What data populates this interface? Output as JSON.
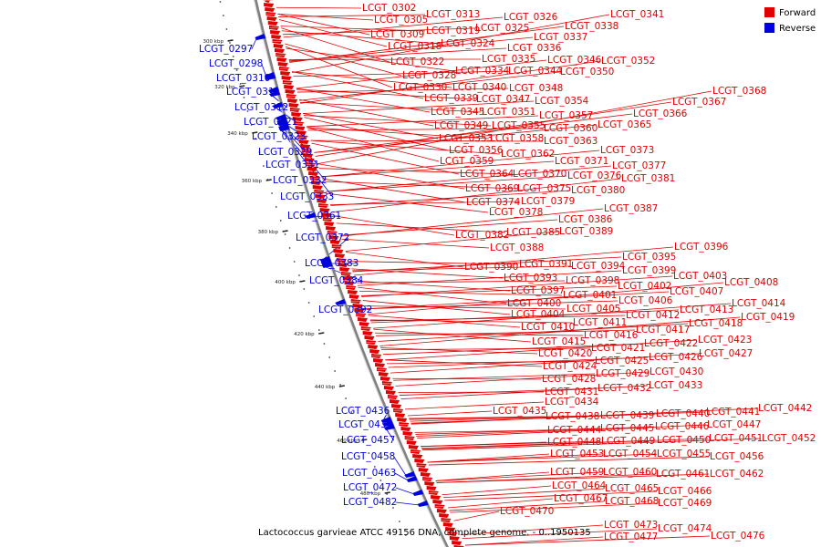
{
  "legend": {
    "forward_label": "Forward",
    "reverse_label": "Reverse",
    "forward_color": "#e00000",
    "reverse_color": "#0000dd"
  },
  "caption": "Lactococcus garvieae ATCC 49156 DNA, complete genome. - 0..1950135",
  "scale_ticks": [
    "300 kbp",
    "320 kbp",
    "340 kbp",
    "360 kbp",
    "380 kbp",
    "400 kbp",
    "420 kbp",
    "440 kbp",
    "460 kbp",
    "480 kbp"
  ],
  "forward_genes": [
    "LCGT_0302",
    "LCGT_0305",
    "LCGT_0309",
    "LCGT_0313",
    "LCGT_0318",
    "LCGT_0319",
    "LCGT_0322",
    "LCGT_0324",
    "LCGT_0325",
    "LCGT_0326",
    "LCGT_0328",
    "LCGT_0330",
    "LCGT_0334",
    "LCGT_0335",
    "LCGT_0336",
    "LCGT_0337",
    "LCGT_0338",
    "LCGT_0339",
    "LCGT_0340",
    "LCGT_0341",
    "LCGT_0344",
    "LCGT_0345",
    "LCGT_0346",
    "LCGT_0347",
    "LCGT_0348",
    "LCGT_0349",
    "LCGT_0350",
    "LCGT_0351",
    "LCGT_0352",
    "LCGT_0353",
    "LCGT_0354",
    "LCGT_0355",
    "LCGT_0356",
    "LCGT_0357",
    "LCGT_0358",
    "LCGT_0359",
    "LCGT_0360",
    "LCGT_0362",
    "LCGT_0363",
    "LCGT_0364",
    "LCGT_0365",
    "LCGT_0366",
    "LCGT_0367",
    "LCGT_0368",
    "LCGT_0369",
    "LCGT_0370",
    "LCGT_0371",
    "LCGT_0373",
    "LCGT_0374",
    "LCGT_0375",
    "LCGT_0376",
    "LCGT_0377",
    "LCGT_0378",
    "LCGT_0379",
    "LCGT_0380",
    "LCGT_0381",
    "LCGT_0382",
    "LCGT_0385",
    "LCGT_0386",
    "LCGT_0387",
    "LCGT_0388",
    "LCGT_0389",
    "LCGT_0390",
    "LCGT_0391",
    "LCGT_0393",
    "LCGT_0394",
    "LCGT_0395",
    "LCGT_0396",
    "LCGT_0397",
    "LCGT_0398",
    "LCGT_0399",
    "LCGT_0400",
    "LCGT_0401",
    "LCGT_0402",
    "LCGT_0403",
    "LCGT_0404",
    "LCGT_0405",
    "LCGT_0406",
    "LCGT_0407",
    "LCGT_0408",
    "LCGT_0410",
    "LCGT_0411",
    "LCGT_0412",
    "LCGT_0413",
    "LCGT_0414",
    "LCGT_0415",
    "LCGT_0416",
    "LCGT_0417",
    "LCGT_0418",
    "LCGT_0419",
    "LCGT_0420",
    "LCGT_0421",
    "LCGT_0422",
    "LCGT_0423",
    "LCGT_0424",
    "LCGT_0425",
    "LCGT_0426",
    "LCGT_0427",
    "LCGT_0428",
    "LCGT_0429",
    "LCGT_0430",
    "LCGT_0431",
    "LCGT_0432",
    "LCGT_0433",
    "LCGT_0434",
    "LCGT_0435",
    "LCGT_0438",
    "LCGT_0439",
    "LCGT_0440",
    "LCGT_0441",
    "LCGT_0442",
    "LCGT_0444",
    "LCGT_0445",
    "LCGT_0446",
    "LCGT_0447",
    "LCGT_0448",
    "LCGT_0449",
    "LCGT_0450",
    "LCGT_0451",
    "LCGT_0452",
    "LCGT_0453",
    "LCGT_0454",
    "LCGT_0455",
    "LCGT_0456",
    "LCGT_0459",
    "LCGT_0460",
    "LCGT_0461",
    "LCGT_0462",
    "LCGT_0464",
    "LCGT_0465",
    "LCGT_0466",
    "LCGT_0467",
    "LCGT_0468",
    "LCGT_0469",
    "LCGT_0470",
    "LCGT_0473",
    "LCGT_0474",
    "LCGT_0476",
    "LCGT_0477"
  ],
  "reverse_genes": [
    "LCGT_0297",
    "LCGT_0298",
    "LCGT_0310",
    "LCGT_0311",
    "LCGT_0312",
    "LCGT_0321",
    "LCGT_0323",
    "LCGT_0329",
    "LCGT_0331",
    "LCGT_0332",
    "LCGT_0333",
    "LCGT_0361",
    "LCGT_0372",
    "LCGT_0383",
    "LCGT_0384",
    "LCGT_0392",
    "LCGT_0436",
    "LCGT_0437",
    "LCGT_0457",
    "LCGT_0458",
    "LCGT_0463",
    "LCGT_0472",
    "LCGT_0482"
  ]
}
